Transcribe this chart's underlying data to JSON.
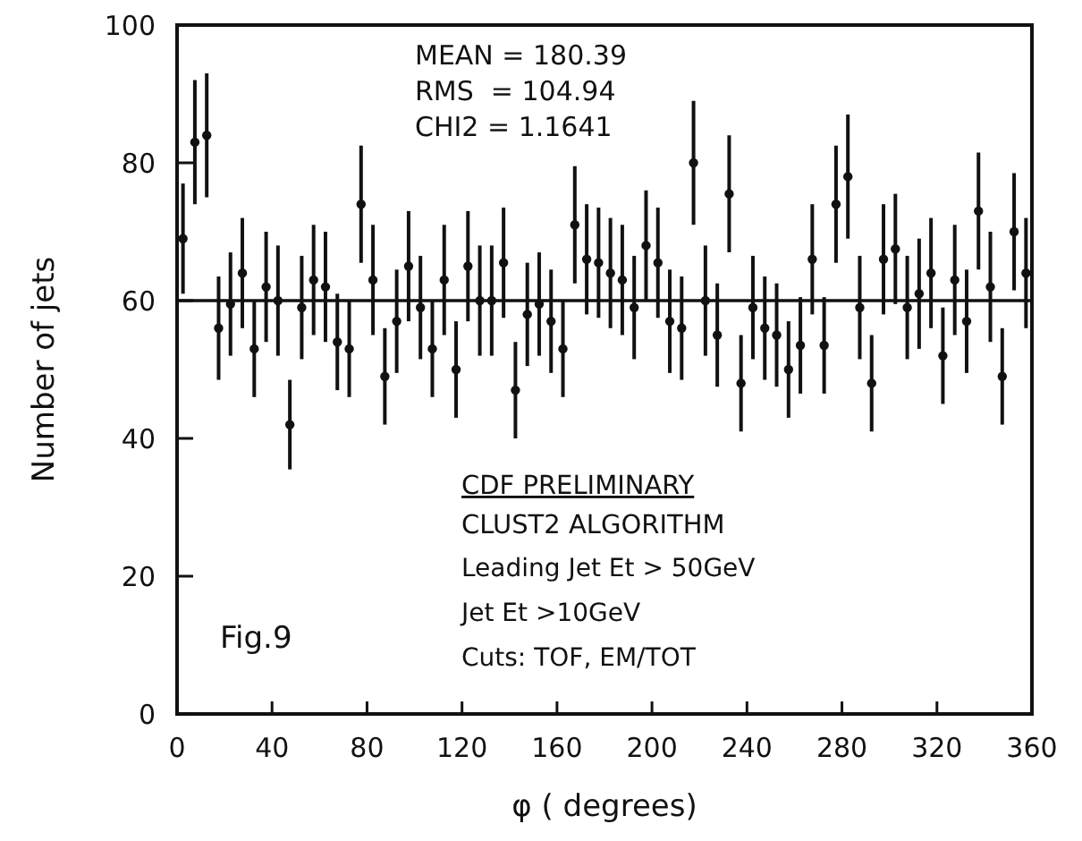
{
  "chart_data": {
    "type": "scatter",
    "xlabel": "φ ( degrees)",
    "ylabel": "Number of jets",
    "xlim": [
      0,
      360
    ],
    "ylim": [
      0,
      100
    ],
    "xticks": [
      0,
      40,
      80,
      120,
      160,
      200,
      240,
      280,
      320,
      360
    ],
    "yticks": [
      0,
      20,
      40,
      60,
      80,
      100
    ],
    "grid": false,
    "marker": "circle",
    "annotations": [
      "MEAN = 180.39",
      "RMS  = 104.94",
      "CHI2 = 1.1641",
      "CDF PRELIMINARY",
      "CLUST2 ALGORITHM",
      "Leading Jet Et > 50GeV",
      "Jet Et >10GeV",
      "Cuts: TOF, EM/TOT",
      "Fig.9"
    ],
    "series": [
      {
        "color": "#111111",
        "x": [
          2.5,
          7.5,
          12.5,
          17.5,
          22.5,
          27.5,
          32.5,
          37.5,
          42.5,
          47.5,
          52.5,
          57.5,
          62.5,
          67.5,
          72.5,
          77.5,
          82.5,
          87.5,
          92.5,
          97.5,
          102.5,
          107.5,
          112.5,
          117.5,
          122.5,
          127.5,
          132.5,
          137.5,
          142.5,
          147.5,
          152.5,
          157.5,
          162.5,
          167.5,
          172.5,
          177.5,
          182.5,
          187.5,
          192.5,
          197.5,
          202.5,
          207.5,
          212.5,
          217.5,
          222.5,
          227.5,
          232.5,
          237.5,
          242.5,
          247.5,
          252.5,
          257.5,
          262.5,
          267.5,
          272.5,
          277.5,
          282.5,
          287.5,
          292.5,
          297.5,
          302.5,
          307.5,
          312.5,
          317.5,
          322.5,
          327.5,
          332.5,
          337.5,
          342.5,
          347.5,
          352.5,
          357.5
        ],
        "values": [
          69,
          83,
          84,
          56,
          59.5,
          64,
          53,
          62,
          60,
          42,
          59,
          63,
          62,
          54,
          53,
          74,
          63,
          49,
          57,
          65,
          59,
          53,
          63,
          50,
          65,
          60,
          60,
          65.5,
          47,
          58,
          59.5,
          57,
          53,
          71,
          66,
          65.5,
          64,
          63,
          59,
          68,
          65.5,
          57,
          56,
          80,
          60,
          55,
          75.5,
          48,
          59,
          56,
          55,
          50,
          53.5,
          66,
          53.5,
          74,
          78,
          59,
          48,
          66,
          67.5,
          59,
          61,
          64,
          52,
          63,
          57,
          73,
          62,
          49,
          70,
          64
        ],
        "errors": [
          8,
          9,
          9,
          7.5,
          7.5,
          8,
          7,
          8,
          8,
          6.5,
          7.5,
          8,
          8,
          7,
          7,
          8.5,
          8,
          7,
          7.5,
          8,
          7.5,
          7,
          8,
          7,
          8,
          8,
          8,
          8,
          7,
          7.5,
          7.5,
          7.5,
          7,
          8.5,
          8,
          8,
          8,
          8,
          7.5,
          8,
          8,
          7.5,
          7.5,
          9,
          8,
          7.5,
          8.5,
          7,
          7.5,
          7.5,
          7.5,
          7,
          7,
          8,
          7,
          8.5,
          9,
          7.5,
          7,
          8,
          8,
          7.5,
          8,
          8,
          7,
          8,
          7.5,
          8.5,
          8,
          7,
          8.5,
          8
        ]
      },
      {
        "type": "line",
        "color": "#111111",
        "x": [
          0,
          360
        ],
        "values": [
          60,
          60
        ],
        "marker": "none"
      }
    ]
  }
}
